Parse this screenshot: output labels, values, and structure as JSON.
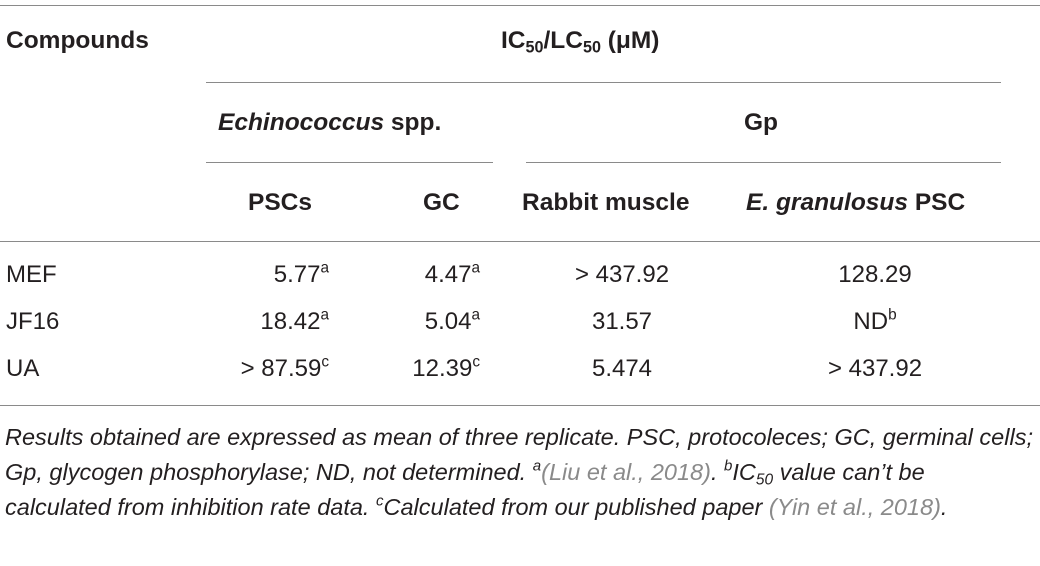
{
  "table": {
    "header_compounds": "Compounds",
    "header_ic50": {
      "a": "IC",
      "a_sub": "50",
      "b": "/LC",
      "b_sub": "50",
      "c": " (μM)"
    },
    "header_echinococcus": {
      "genus": "Echinococcus",
      "rest": " spp."
    },
    "header_gp": "Gp",
    "col_pscs": "PSCs",
    "col_gc": "GC",
    "col_rabbit": "Rabbit muscle",
    "col_egran": {
      "species": "E. granulosus",
      "rest": " PSC"
    },
    "rows": [
      {
        "compound": "MEF",
        "pscs": "5.77",
        "pscs_sup": "a",
        "gc": "4.47",
        "gc_sup": "a",
        "rabbit": "> 437.92",
        "egran": "128.29",
        "egran_sup": ""
      },
      {
        "compound": "JF16",
        "pscs": "18.42",
        "pscs_sup": "a",
        "gc": "5.04",
        "gc_sup": "a",
        "rabbit": "31.57",
        "egran": "ND",
        "egran_sup": "b"
      },
      {
        "compound": "UA",
        "pscs": "> 87.59",
        "pscs_sup": "c",
        "gc": "12.39",
        "gc_sup": "c",
        "rabbit": "5.474",
        "egran": "> 437.92",
        "egran_sup": ""
      }
    ]
  },
  "footnote": {
    "part1": "Results obtained are expressed as mean of three replicate. PSC, protocoleces; GC, germinal cells; Gp, glycogen phosphorylase; ND, not determined. ",
    "sup_a": "a",
    "cite_a": "(Liu et al., 2018)",
    "part2": ". ",
    "sup_b": "b",
    "ic": "IC",
    "ic_sub": "50",
    "part3": " value can’t be calculated from inhibition rate data. ",
    "sup_c": "c",
    "part4": "Calculated from our published paper ",
    "cite_c": "(Yin et al., 2018)",
    "part5": "."
  }
}
